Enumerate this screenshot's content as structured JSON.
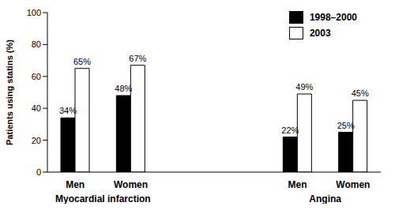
{
  "chart_data": {
    "type": "bar",
    "categories": [
      "Men",
      "Women",
      "Men",
      "Women"
    ],
    "groups": [
      "Myocardial infarction",
      "Myocardial infarction",
      "Angina",
      "Angina"
    ],
    "series": [
      {
        "name": "1998–2000",
        "color": "#000000",
        "values": [
          34,
          48,
          22,
          25
        ],
        "value_labels": [
          "34%",
          "48%",
          "22%",
          "25%"
        ]
      },
      {
        "name": "2003",
        "color": "#ffffff",
        "values": [
          65,
          67,
          49,
          45
        ],
        "value_labels": [
          "65%",
          "67%",
          "49%",
          "45%"
        ]
      }
    ],
    "y_label": "Patients using statins (%)",
    "ylim": [
      0,
      100
    ],
    "yticks": [
      0,
      20,
      40,
      60,
      80,
      100
    ],
    "grid": false,
    "legend": "upper right",
    "data_labels": true
  }
}
